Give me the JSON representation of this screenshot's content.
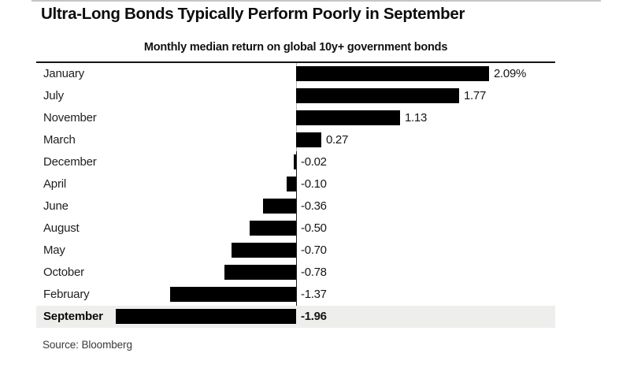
{
  "header": {
    "title": "Ultra-Long Bonds Typically Perform Poorly in September",
    "subtitle": "Monthly median return on global 10y+ government bonds"
  },
  "source": "Source: Bloomberg",
  "colors": {
    "bar": "#000000",
    "highlight_row_background": "#eeeeec",
    "header_rule": "#141414",
    "background": "#ffffff",
    "text": "#0d0d0d"
  },
  "chart_data": {
    "type": "bar",
    "orientation": "horizontal",
    "title": "Ultra-Long Bonds Typically Perform Poorly in September",
    "subtitle": "Monthly median return on global 10y+ government bonds",
    "unit": "%",
    "sorted": "descending",
    "grid": "off",
    "legend": "none",
    "xlim": [
      -2.82,
      2.81
    ],
    "categories": [
      "January",
      "July",
      "November",
      "March",
      "December",
      "April",
      "June",
      "August",
      "May",
      "October",
      "February",
      "September"
    ],
    "values": [
      2.09,
      1.77,
      1.13,
      0.27,
      -0.02,
      -0.1,
      -0.36,
      -0.5,
      -0.7,
      -0.78,
      -1.37,
      -1.96
    ],
    "value_labels": [
      "2.09%",
      "1.77",
      "1.13",
      "0.27",
      "-0.02",
      "-0.10",
      "-0.36",
      "-0.50",
      "-0.70",
      "-0.78",
      "-1.37",
      "-1.96"
    ],
    "highlight_category": "September"
  }
}
